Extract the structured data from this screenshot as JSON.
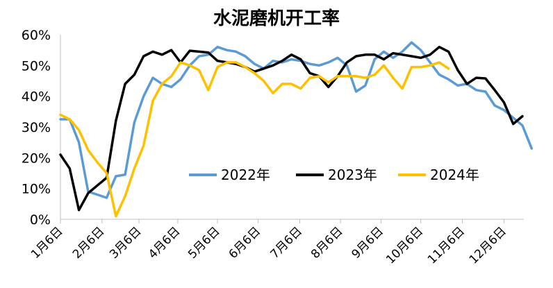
{
  "chart_data": {
    "type": "line",
    "title": "水泥磨机开工率",
    "x_tick_labels": [
      "1月6日",
      "2月6日",
      "3月6日",
      "4月6日",
      "5月6日",
      "6月6日",
      "7月6日",
      "8月6日",
      "9月6日",
      "10月6日",
      "11月6日",
      "12月6日"
    ],
    "x_unit": "week (weekly observations, 1月6日 = week 0)",
    "y_tick_labels": [
      "0%",
      "10%",
      "20%",
      "30%",
      "40%",
      "50%",
      "60%"
    ],
    "ylim": [
      0,
      60
    ],
    "y_unit": "%",
    "grid": false,
    "legend_position": "lower-center inside plot",
    "series": [
      {
        "name": "2022年",
        "color": "#5b9bd5",
        "values": [
          32.5,
          32.5,
          25,
          9,
          8,
          7,
          14,
          14.5,
          31.5,
          40,
          46,
          44,
          43,
          45.5,
          50,
          53,
          53.5,
          56,
          55,
          54.5,
          53,
          50.5,
          49,
          51.5,
          51,
          52,
          51.5,
          50.5,
          50,
          51,
          52.5,
          50,
          41.5,
          43.5,
          52,
          54.5,
          52.5,
          54.5,
          57.5,
          55,
          51,
          47,
          45.5,
          43.5,
          44,
          42,
          41.5,
          37,
          35.5,
          33,
          30.5,
          23
        ]
      },
      {
        "name": "2023年",
        "color": "#000000",
        "values": [
          21,
          16.5,
          3,
          8.5,
          11,
          13.5,
          32,
          44,
          47,
          53,
          54.5,
          53.5,
          55,
          51,
          54.8,
          54.5,
          54.2,
          51.5,
          51,
          50.5,
          49.5,
          48,
          49,
          50,
          51.5,
          53.5,
          52,
          47.5,
          46.5,
          43,
          46.5,
          51,
          53,
          53.5,
          53.5,
          52,
          54,
          53.5,
          53,
          52.5,
          53.5,
          56,
          54.5,
          48.5,
          44,
          46,
          45.8,
          42,
          38,
          31,
          33.5
        ]
      },
      {
        "name": "2024年",
        "color": "#ffc000",
        "values": [
          34,
          32.5,
          29,
          22.5,
          18.5,
          15,
          1,
          7.5,
          16.5,
          24,
          38.5,
          44,
          46.5,
          51,
          50,
          48.5,
          42,
          49.5,
          51,
          51,
          49.5,
          47.5,
          45,
          41,
          44,
          44,
          42.5,
          46,
          46.5,
          44.5,
          46.5,
          46.5,
          46.5,
          46,
          47,
          50,
          46,
          42.5,
          49.5,
          49.5,
          50,
          51,
          49
        ]
      }
    ]
  }
}
